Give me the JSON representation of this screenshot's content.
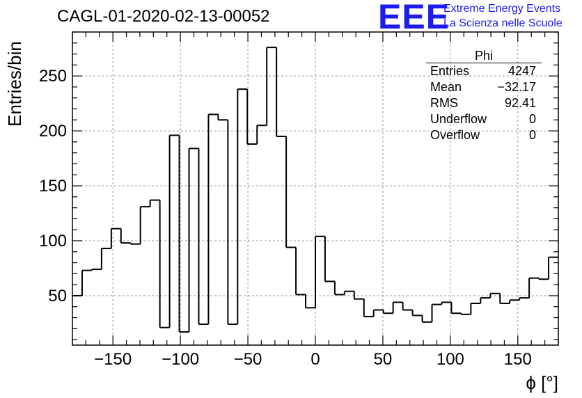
{
  "title": "CAGL-01-2020-02-13-00052",
  "logo": {
    "mark": "EEE",
    "line1": "Extreme Energy Events",
    "line2": "La Scienza nelle Scuole"
  },
  "stats_box": {
    "name": "Phi",
    "rows": [
      {
        "label": "Entries",
        "value": "4247"
      },
      {
        "label": "Mean",
        "value": "−32.17"
      },
      {
        "label": "RMS",
        "value": "92.41"
      },
      {
        "label": "Underflow",
        "value": "0"
      },
      {
        "label": "Overflow",
        "value": "0"
      }
    ]
  },
  "chart_data": {
    "type": "histogram",
    "xlabel": "ϕ [°]",
    "ylabel": "Entries/bin",
    "xlim": [
      -180,
      180
    ],
    "ylim": [
      5,
      290
    ],
    "grid": true,
    "bin_width": 7.2,
    "x_ticks": [
      -150,
      -100,
      -50,
      0,
      50,
      100,
      150
    ],
    "y_ticks": [
      50,
      100,
      150,
      200,
      250
    ],
    "values": [
      50,
      73,
      74,
      93,
      111,
      98,
      97,
      131,
      137,
      21,
      196,
      17,
      184,
      24,
      215,
      210,
      24,
      238,
      188,
      205,
      276,
      195,
      94,
      51,
      39,
      104,
      63,
      51,
      54,
      47,
      31,
      37,
      34,
      44,
      37,
      32,
      26,
      42,
      44,
      34,
      33,
      43,
      48,
      52,
      43,
      46,
      48,
      66,
      65,
      85
    ],
    "line_color": "#000000"
  }
}
